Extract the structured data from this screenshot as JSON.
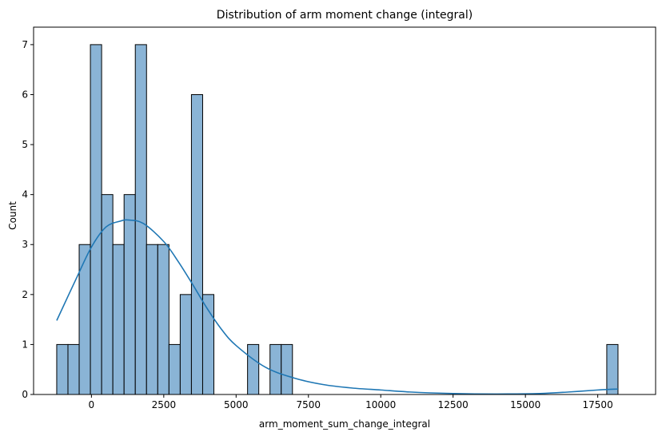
{
  "chart_data": {
    "type": "bar",
    "subtype": "histogram_with_kde",
    "title": "Distribution of arm moment change (integral)",
    "xlabel": "arm_moment_sum_change_integral",
    "ylabel": "Count",
    "xlim": [
      -2000,
      19500
    ],
    "ylim": [
      0,
      7.35
    ],
    "xticks": [
      0,
      2500,
      5000,
      7500,
      10000,
      12500,
      15000,
      17500
    ],
    "xtick_labels": [
      "0",
      "2500",
      "5000",
      "7500",
      "10000",
      "12500",
      "15000",
      "17500"
    ],
    "yticks": [
      0,
      1,
      2,
      3,
      4,
      5,
      6,
      7
    ],
    "ytick_labels": [
      "0",
      "1",
      "2",
      "3",
      "4",
      "5",
      "6",
      "7"
    ],
    "grid": false,
    "bin_start": -1200,
    "bin_width": 388,
    "counts": [
      1,
      1,
      3,
      7,
      4,
      3,
      4,
      7,
      3,
      3,
      1,
      2,
      6,
      2,
      0,
      0,
      0,
      1,
      0,
      1,
      1,
      0,
      0,
      0,
      0,
      0,
      0,
      0,
      0,
      0,
      0,
      0,
      0,
      0,
      0,
      0,
      0,
      0,
      0,
      0,
      0,
      0,
      0,
      0,
      0,
      0,
      0,
      0,
      0,
      1
    ],
    "kde": {
      "x": [
        -1200,
        -500,
        0,
        500,
        1000,
        1300,
        1800,
        2500,
        3000,
        3500,
        4000,
        4500,
        5000,
        6000,
        7000,
        8000,
        9000,
        10000,
        11000,
        12500,
        14000,
        15500,
        16500,
        17500,
        18200
      ],
      "y": [
        1.48,
        2.35,
        2.95,
        3.35,
        3.47,
        3.49,
        3.42,
        3.06,
        2.66,
        2.2,
        1.72,
        1.3,
        0.98,
        0.55,
        0.33,
        0.2,
        0.13,
        0.09,
        0.05,
        0.02,
        0.01,
        0.02,
        0.05,
        0.09,
        0.11
      ]
    },
    "colors": {
      "bar_fill": "#8ab4d6",
      "bar_edge": "#000000",
      "kde_line": "#1f77b4"
    }
  }
}
